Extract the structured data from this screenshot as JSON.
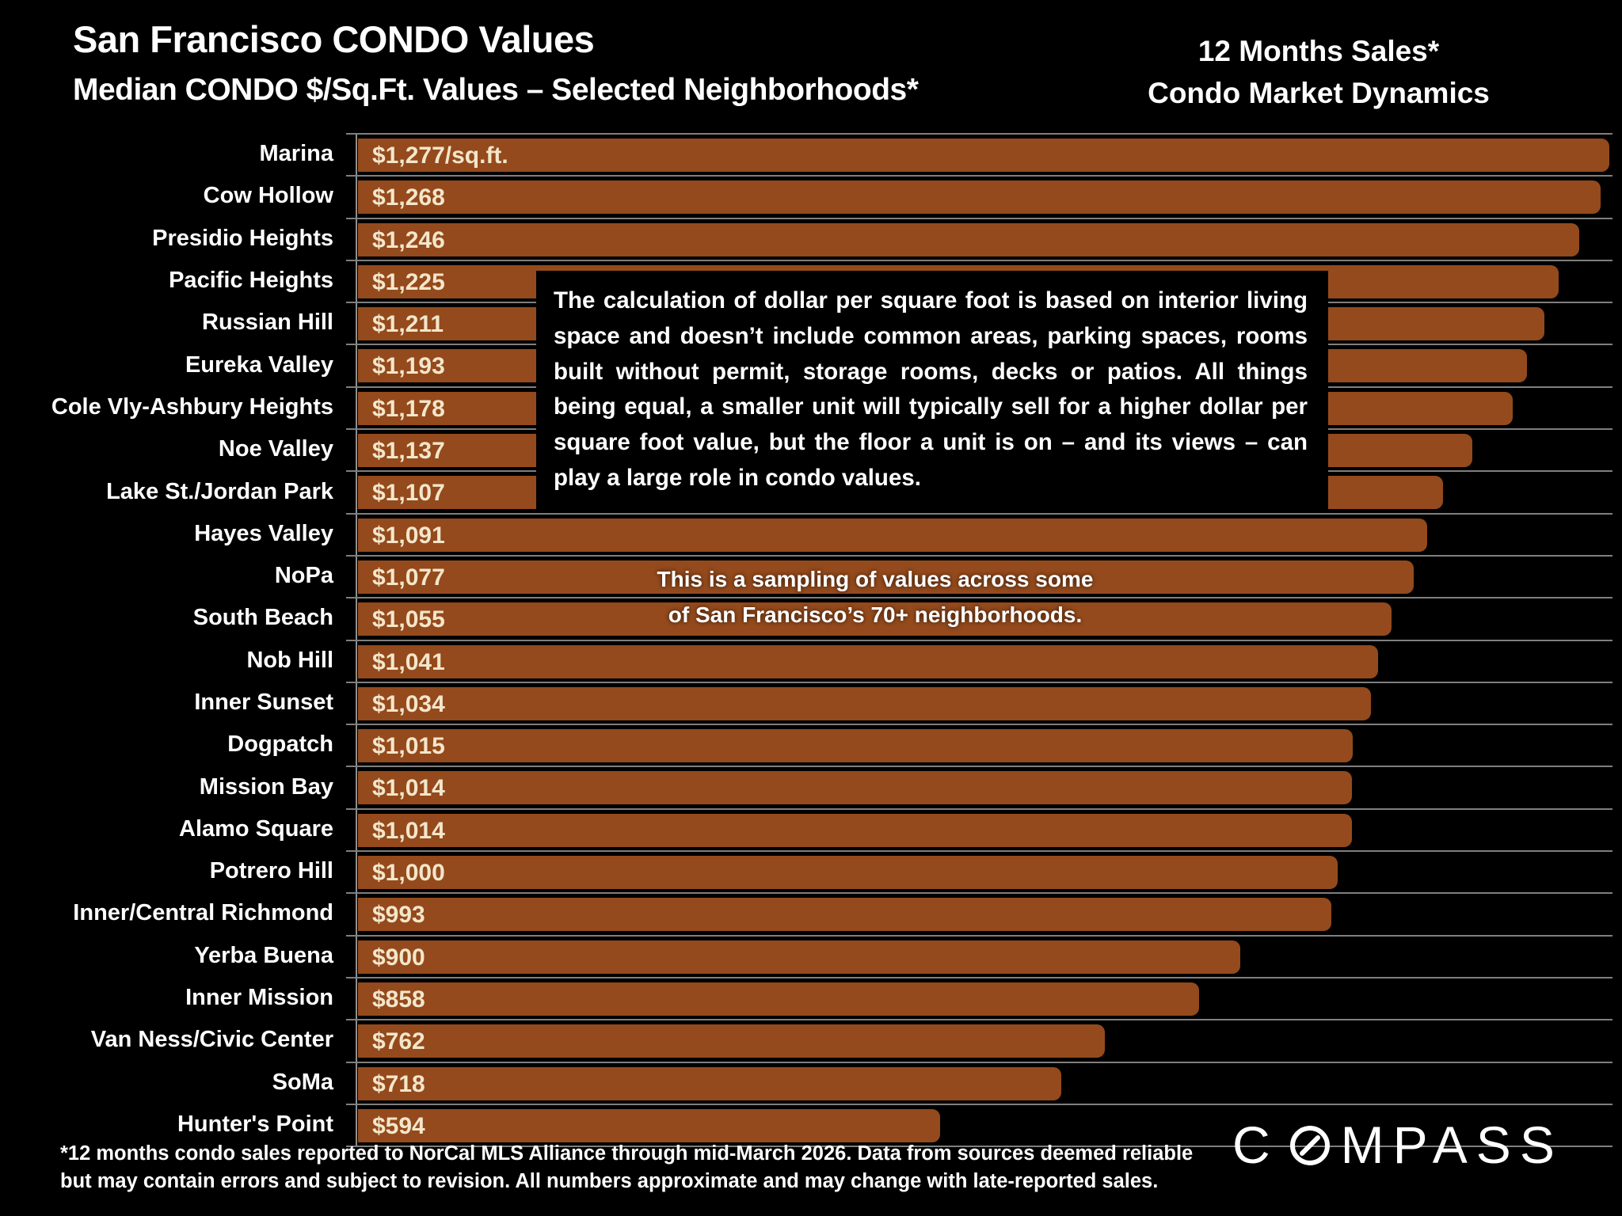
{
  "header": {
    "title": "San Francisco CONDO Values",
    "subtitle": "Median CONDO $/Sq.Ft. Values – Selected Neighborhoods*",
    "right_title_line1": "12 Months Sales*",
    "right_title_line2": "Condo Market Dynamics"
  },
  "chart_data": {
    "type": "bar",
    "orientation": "horizontal",
    "title": "Median CONDO $/Sq.Ft. Values – Selected Neighborhoods",
    "unit": "$/sq.ft.",
    "xlim": [
      0,
      1277
    ],
    "grid": true,
    "bar_color": "#944A1C",
    "value_text_color": "#F3E6CB",
    "categories": [
      "Marina",
      "Cow Hollow",
      "Presidio Heights",
      "Pacific Heights",
      "Russian Hill",
      "Eureka Valley",
      "Cole Vly-Ashbury Heights",
      "Noe Valley",
      "Lake St./Jordan Park",
      "Hayes Valley",
      "NoPa",
      "South Beach",
      "Nob Hill",
      "Inner Sunset",
      "Dogpatch",
      "Mission Bay",
      "Alamo Square",
      "Potrero Hill",
      "Inner/Central Richmond",
      "Yerba Buena",
      "Inner Mission",
      "Van Ness/Civic Center",
      "SoMa",
      "Hunter's Point"
    ],
    "values": [
      1277,
      1268,
      1246,
      1225,
      1211,
      1193,
      1178,
      1137,
      1107,
      1091,
      1077,
      1055,
      1041,
      1034,
      1015,
      1014,
      1014,
      1000,
      993,
      900,
      858,
      762,
      718,
      594
    ],
    "value_labels": [
      "$1,277/sq.ft.",
      "$1,268",
      "$1,246",
      "$1,225",
      "$1,211",
      "$1,193",
      "$1,178",
      "$1,137",
      "$1,107",
      "$1,091",
      "$1,077",
      "$1,055",
      "$1,041",
      "$1,034",
      "$1,015",
      "$1,014",
      "$1,014",
      "$1,000",
      "$993",
      "$900",
      "$858",
      "$762",
      "$718",
      "$594"
    ]
  },
  "annotations": {
    "info_box_text": "The calculation of dollar per square foot is based on interior living space and doesn’t include common areas, parking spaces, rooms built without permit, storage rooms, decks or patios. All things being equal, a smaller unit will typically sell for a higher dollar per square foot value, but the floor a unit is on – and its views – can play a large role in condo values.",
    "sampling_note_line1": "This is a sampling of values across some",
    "sampling_note_line2": "of San Francisco’s 70+ neighborhoods."
  },
  "footer": {
    "footnote_line1": "*12 months condo sales reported to NorCal MLS Alliance through mid-March 2026. Data from sources deemed reliable",
    "footnote_line2": "but may contain errors and subject to revision. All numbers approximate and may change with late-reported sales.",
    "brand": "COMPASS",
    "brand_icon": "compass-o-icon"
  }
}
